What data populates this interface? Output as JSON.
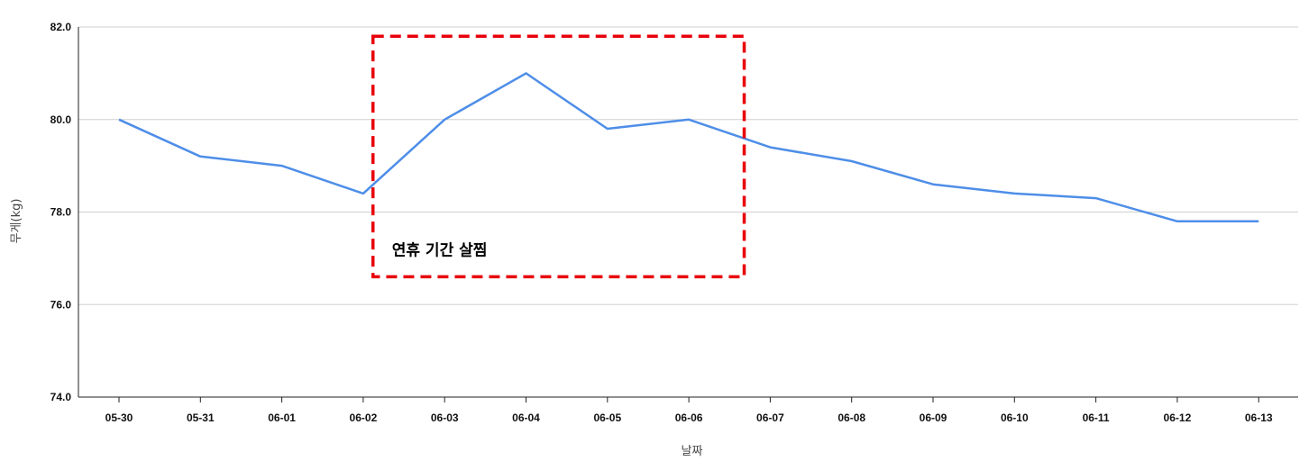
{
  "chart_data": {
    "type": "line",
    "categories": [
      "05-30",
      "05-31",
      "06-01",
      "06-02",
      "06-03",
      "06-04",
      "06-05",
      "06-06",
      "06-07",
      "06-08",
      "06-09",
      "06-10",
      "06-11",
      "06-12",
      "06-13"
    ],
    "series": [
      {
        "values": [
          80.0,
          79.2,
          79.0,
          78.4,
          80.0,
          81.0,
          79.8,
          80.0,
          79.4,
          79.1,
          78.6,
          78.4,
          78.3,
          77.8,
          77.8
        ]
      }
    ],
    "title": "",
    "xlabel": "날짜",
    "ylabel": "무게(kg)",
    "ylim": [
      74.0,
      82.0
    ],
    "yticks": [
      "74.0",
      "76.0",
      "78.0",
      "80.0",
      "82.0"
    ],
    "grid": true,
    "line_color": "#4e8ee8",
    "annotation": {
      "text": "연휴 기간 살찜",
      "color": "#e8000b",
      "style": "dashed",
      "x_range": [
        "06-02",
        "06-07"
      ],
      "y_range": [
        76.6,
        81.8
      ]
    }
  }
}
